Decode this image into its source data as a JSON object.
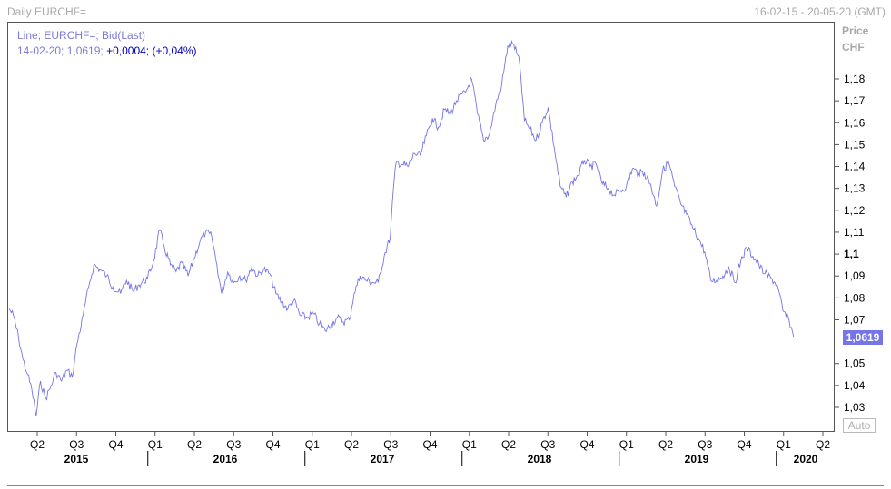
{
  "header": {
    "title": "Daily EURCHF=",
    "date_range": "16-02-15 - 20-05-20 (GMT)"
  },
  "legend": {
    "line1": "Line; EURCHF=; Bid(Last)",
    "line2_prefix": "14-02-20; 1,0619;",
    "line2_change": "+0,0004; (+0,04%)"
  },
  "price_axis": {
    "title": "Price",
    "unit": "CHF",
    "last_value": "1,0619",
    "auto_label": "Auto"
  },
  "colors": {
    "line": "#7575e8",
    "badge": "#7575e8",
    "change_text": "#0000c0",
    "frame": "#555555"
  },
  "chart_data": {
    "type": "line",
    "title": "Daily EURCHF=",
    "series": [
      {
        "name": "EURCHF="
      }
    ],
    "ylim": [
      1.02,
      1.205
    ],
    "y_ticks": [
      {
        "label": "1,03",
        "value": 1.03,
        "bold": false
      },
      {
        "label": "1,04",
        "value": 1.04,
        "bold": false
      },
      {
        "label": "1,05",
        "value": 1.05,
        "bold": false
      },
      {
        "label": "1,07",
        "value": 1.07,
        "bold": false
      },
      {
        "label": "1,08",
        "value": 1.08,
        "bold": false
      },
      {
        "label": "1,09",
        "value": 1.09,
        "bold": false
      },
      {
        "label": "1,1",
        "value": 1.1,
        "bold": true
      },
      {
        "label": "1,11",
        "value": 1.11,
        "bold": false
      },
      {
        "label": "1,12",
        "value": 1.12,
        "bold": false
      },
      {
        "label": "1,13",
        "value": 1.13,
        "bold": false
      },
      {
        "label": "1,14",
        "value": 1.14,
        "bold": false
      },
      {
        "label": "1,15",
        "value": 1.15,
        "bold": false
      },
      {
        "label": "1,16",
        "value": 1.16,
        "bold": false
      },
      {
        "label": "1,17",
        "value": 1.17,
        "bold": false
      },
      {
        "label": "1,18",
        "value": 1.18,
        "bold": false
      }
    ],
    "quarter_labels": [
      "Q2",
      "Q3",
      "Q4",
      "Q1",
      "Q2",
      "Q3",
      "Q4",
      "Q1",
      "Q2",
      "Q3",
      "Q4",
      "Q1",
      "Q2",
      "Q3",
      "Q4",
      "Q1",
      "Q2",
      "Q3",
      "Q4",
      "Q1",
      "Q2"
    ],
    "year_labels": [
      "2015",
      "2016",
      "2017",
      "2018",
      "2019",
      "2020"
    ],
    "x_range": [
      "2015-02-16",
      "2020-05-20"
    ],
    "points": [
      [
        "2015-02-16",
        1.075
      ],
      [
        "2015-02-26",
        1.072
      ],
      [
        "2015-03-10",
        1.062
      ],
      [
        "2015-03-20",
        1.052
      ],
      [
        "2015-03-31",
        1.045
      ],
      [
        "2015-04-10",
        1.038
      ],
      [
        "2015-04-20",
        1.026
      ],
      [
        "2015-04-30",
        1.042
      ],
      [
        "2015-05-12",
        1.034
      ],
      [
        "2015-05-25",
        1.04
      ],
      [
        "2015-06-05",
        1.046
      ],
      [
        "2015-06-18",
        1.042
      ],
      [
        "2015-06-30",
        1.047
      ],
      [
        "2015-07-13",
        1.044
      ],
      [
        "2015-07-24",
        1.059
      ],
      [
        "2015-08-07",
        1.072
      ],
      [
        "2015-08-20",
        1.085
      ],
      [
        "2015-09-01",
        1.095
      ],
      [
        "2015-09-15",
        1.093
      ],
      [
        "2015-10-01",
        1.09
      ],
      [
        "2015-10-15",
        1.085
      ],
      [
        "2015-11-02",
        1.082
      ],
      [
        "2015-11-16",
        1.088
      ],
      [
        "2015-12-01",
        1.083
      ],
      [
        "2015-12-15",
        1.086
      ],
      [
        "2016-01-04",
        1.089
      ],
      [
        "2016-01-18",
        1.097
      ],
      [
        "2016-02-01",
        1.111
      ],
      [
        "2016-02-12",
        1.103
      ],
      [
        "2016-02-26",
        1.095
      ],
      [
        "2016-03-10",
        1.092
      ],
      [
        "2016-03-24",
        1.096
      ],
      [
        "2016-04-07",
        1.09
      ],
      [
        "2016-04-21",
        1.098
      ],
      [
        "2016-05-05",
        1.106
      ],
      [
        "2016-05-18",
        1.11
      ],
      [
        "2016-06-01",
        1.108
      ],
      [
        "2016-06-13",
        1.095
      ],
      [
        "2016-06-24",
        1.082
      ],
      [
        "2016-07-08",
        1.092
      ],
      [
        "2016-07-22",
        1.087
      ],
      [
        "2016-08-05",
        1.09
      ],
      [
        "2016-08-19",
        1.088
      ],
      [
        "2016-09-02",
        1.094
      ],
      [
        "2016-09-16",
        1.09
      ],
      [
        "2016-09-30",
        1.093
      ],
      [
        "2016-10-14",
        1.091
      ],
      [
        "2016-10-28",
        1.082
      ],
      [
        "2016-11-11",
        1.078
      ],
      [
        "2016-11-25",
        1.075
      ],
      [
        "2016-12-09",
        1.079
      ],
      [
        "2016-12-23",
        1.072
      ],
      [
        "2017-01-09",
        1.071
      ],
      [
        "2017-01-23",
        1.073
      ],
      [
        "2017-02-06",
        1.068
      ],
      [
        "2017-02-20",
        1.065
      ],
      [
        "2017-03-06",
        1.068
      ],
      [
        "2017-03-20",
        1.071
      ],
      [
        "2017-04-03",
        1.069
      ],
      [
        "2017-04-17",
        1.07
      ],
      [
        "2017-04-28",
        1.082
      ],
      [
        "2017-05-12",
        1.09
      ],
      [
        "2017-05-26",
        1.088
      ],
      [
        "2017-06-09",
        1.087
      ],
      [
        "2017-06-23",
        1.087
      ],
      [
        "2017-07-07",
        1.099
      ],
      [
        "2017-07-21",
        1.108
      ],
      [
        "2017-07-28",
        1.129
      ],
      [
        "2017-08-04",
        1.142
      ],
      [
        "2017-08-18",
        1.141
      ],
      [
        "2017-09-01",
        1.14
      ],
      [
        "2017-09-15",
        1.146
      ],
      [
        "2017-09-29",
        1.145
      ],
      [
        "2017-10-13",
        1.154
      ],
      [
        "2017-10-27",
        1.162
      ],
      [
        "2017-11-10",
        1.158
      ],
      [
        "2017-11-24",
        1.166
      ],
      [
        "2017-12-08",
        1.164
      ],
      [
        "2017-12-22",
        1.17
      ],
      [
        "2018-01-12",
        1.174
      ],
      [
        "2018-01-26",
        1.18
      ],
      [
        "2018-02-09",
        1.164
      ],
      [
        "2018-02-23",
        1.152
      ],
      [
        "2018-03-09",
        1.155
      ],
      [
        "2018-03-23",
        1.168
      ],
      [
        "2018-04-06",
        1.177
      ],
      [
        "2018-04-20",
        1.195
      ],
      [
        "2018-05-04",
        1.196
      ],
      [
        "2018-05-18",
        1.187
      ],
      [
        "2018-05-29",
        1.161
      ],
      [
        "2018-06-11",
        1.157
      ],
      [
        "2018-06-25",
        1.152
      ],
      [
        "2018-07-09",
        1.16
      ],
      [
        "2018-07-23",
        1.167
      ],
      [
        "2018-08-06",
        1.149
      ],
      [
        "2018-08-20",
        1.131
      ],
      [
        "2018-09-03",
        1.126
      ],
      [
        "2018-09-17",
        1.133
      ],
      [
        "2018-10-01",
        1.136
      ],
      [
        "2018-10-15",
        1.143
      ],
      [
        "2018-10-29",
        1.14
      ],
      [
        "2018-11-12",
        1.141
      ],
      [
        "2018-11-26",
        1.132
      ],
      [
        "2018-12-10",
        1.13
      ],
      [
        "2018-12-24",
        1.127
      ],
      [
        "2019-01-07",
        1.129
      ],
      [
        "2019-01-21",
        1.131
      ],
      [
        "2019-02-04",
        1.139
      ],
      [
        "2019-02-18",
        1.137
      ],
      [
        "2019-03-04",
        1.137
      ],
      [
        "2019-03-18",
        1.132
      ],
      [
        "2019-04-01",
        1.122
      ],
      [
        "2019-04-15",
        1.138
      ],
      [
        "2019-04-29",
        1.142
      ],
      [
        "2019-05-13",
        1.131
      ],
      [
        "2019-05-27",
        1.123
      ],
      [
        "2019-06-10",
        1.118
      ],
      [
        "2019-06-24",
        1.112
      ],
      [
        "2019-07-08",
        1.107
      ],
      [
        "2019-07-22",
        1.101
      ],
      [
        "2019-08-05",
        1.088
      ],
      [
        "2019-08-19",
        1.088
      ],
      [
        "2019-09-02",
        1.09
      ],
      [
        "2019-09-16",
        1.094
      ],
      [
        "2019-09-30",
        1.087
      ],
      [
        "2019-10-14",
        1.097
      ],
      [
        "2019-10-28",
        1.103
      ],
      [
        "2019-11-11",
        1.099
      ],
      [
        "2019-11-25",
        1.095
      ],
      [
        "2019-12-09",
        1.091
      ],
      [
        "2019-12-23",
        1.089
      ],
      [
        "2020-01-06",
        1.086
      ],
      [
        "2020-01-20",
        1.074
      ],
      [
        "2020-02-03",
        1.07
      ],
      [
        "2020-02-14",
        1.0619
      ]
    ]
  }
}
